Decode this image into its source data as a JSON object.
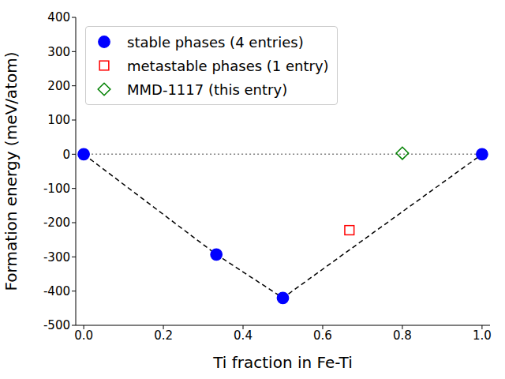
{
  "chart_data": {
    "type": "scatter",
    "x_label": "Ti fraction in Fe-Ti",
    "y_label": "Formation energy (meV/atom)",
    "xlim": [
      -0.02,
      1.02
    ],
    "ylim": [
      -500,
      400
    ],
    "xticks": [
      {
        "value": 0,
        "label": "0.0"
      },
      0.2,
      0.4,
      0.6,
      0.8,
      {
        "value": 1,
        "label": "1.0"
      }
    ],
    "yticks": [
      -500,
      -400,
      -300,
      -200,
      -100,
      0,
      100,
      200,
      300,
      400
    ],
    "legend": "upper left",
    "reference_line": {
      "y": 0,
      "x": [
        0,
        1
      ]
    },
    "series": [
      {
        "name": "stable phases (4 entries)",
        "color": "#0000ff",
        "marker": "circle",
        "line_style": "dashed",
        "x": [
          0,
          0.333,
          0.5,
          1
        ],
        "values": [
          0,
          -293,
          -420,
          0
        ]
      },
      {
        "name": "metastable phases (1 entry)",
        "color": "#ff0000",
        "marker": "square_open",
        "x": [
          0.667
        ],
        "values": [
          -222
        ]
      },
      {
        "name": "MMD-1117 (this entry)",
        "color": "#008000",
        "marker": "diamond_open",
        "x": [
          0.8
        ],
        "values": [
          3
        ]
      }
    ]
  }
}
